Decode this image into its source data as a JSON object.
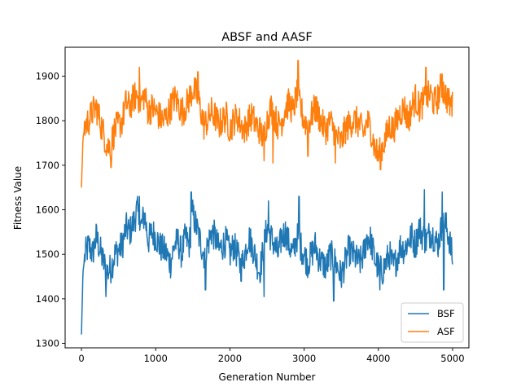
{
  "chart_data": {
    "type": "line",
    "title": "ABSF and AASF",
    "xlabel": "Generation Number",
    "ylabel": "Fitness Value",
    "xlim": [
      -220,
      5220
    ],
    "ylim": [
      1290,
      1965
    ],
    "xticks": [
      0,
      1000,
      2000,
      3000,
      4000,
      5000
    ],
    "yticks": [
      1300,
      1400,
      1500,
      1600,
      1700,
      1800,
      1900
    ],
    "grid": false,
    "legend_position": "lower right",
    "series": [
      {
        "name": "BSF",
        "color": "#1f77b4",
        "x": [
          0,
          20,
          50,
          100,
          150,
          200,
          250,
          300,
          350,
          400,
          450,
          500,
          550,
          600,
          650,
          700,
          750,
          800,
          850,
          900,
          950,
          1000,
          1050,
          1100,
          1150,
          1200,
          1250,
          1300,
          1350,
          1400,
          1450,
          1500,
          1550,
          1600,
          1650,
          1700,
          1750,
          1800,
          1850,
          1900,
          1950,
          2000,
          2050,
          2100,
          2150,
          2200,
          2250,
          2300,
          2350,
          2400,
          2450,
          2500,
          2550,
          2600,
          2650,
          2700,
          2750,
          2800,
          2850,
          2900,
          2950,
          3000,
          3050,
          3100,
          3150,
          3200,
          3250,
          3300,
          3350,
          3400,
          3450,
          3500,
          3550,
          3600,
          3650,
          3700,
          3750,
          3800,
          3850,
          3900,
          3950,
          4000,
          4050,
          4100,
          4150,
          4200,
          4250,
          4300,
          4350,
          4400,
          4450,
          4500,
          4550,
          4600,
          4650,
          4700,
          4750,
          4800,
          4850,
          4900,
          4950,
          5000
        ],
        "values": [
          1320,
          1460,
          1500,
          1520,
          1500,
          1540,
          1510,
          1480,
          1460,
          1470,
          1500,
          1510,
          1520,
          1560,
          1550,
          1570,
          1600,
          1560,
          1590,
          1530,
          1550,
          1540,
          1520,
          1510,
          1500,
          1480,
          1520,
          1530,
          1500,
          1540,
          1520,
          1590,
          1560,
          1530,
          1500,
          1520,
          1550,
          1540,
          1510,
          1520,
          1530,
          1500,
          1520,
          1500,
          1470,
          1500,
          1540,
          1520,
          1490,
          1460,
          1510,
          1560,
          1540,
          1520,
          1500,
          1540,
          1550,
          1520,
          1500,
          1540,
          1520,
          1500,
          1480,
          1500,
          1520,
          1490,
          1480,
          1470,
          1500,
          1490,
          1470,
          1450,
          1480,
          1510,
          1500,
          1490,
          1480,
          1500,
          1540,
          1530,
          1490,
          1470,
          1460,
          1480,
          1500,
          1470,
          1490,
          1520,
          1510,
          1530,
          1540,
          1520,
          1560,
          1540,
          1530,
          1550,
          1540,
          1520,
          1560,
          1570,
          1540,
          1490
        ],
        "peaks": {
          "x": [
            780,
            1480,
            2520,
            2930,
            4620,
            4860
          ],
          "values": [
            1630,
            1640,
            1620,
            1630,
            1645,
            1640
          ]
        },
        "troughs": {
          "x": [
            330,
            1670,
            2460,
            3400,
            4020,
            4880
          ],
          "values": [
            1405,
            1420,
            1405,
            1395,
            1420,
            1420
          ]
        }
      },
      {
        "name": "ASF",
        "color": "#ff7f0e",
        "x": [
          0,
          20,
          50,
          100,
          150,
          200,
          250,
          300,
          350,
          400,
          450,
          500,
          550,
          600,
          650,
          700,
          750,
          800,
          850,
          900,
          950,
          1000,
          1050,
          1100,
          1150,
          1200,
          1250,
          1300,
          1350,
          1400,
          1450,
          1500,
          1550,
          1600,
          1650,
          1700,
          1750,
          1800,
          1850,
          1900,
          1950,
          2000,
          2050,
          2100,
          2150,
          2200,
          2250,
          2300,
          2350,
          2400,
          2450,
          2500,
          2550,
          2600,
          2650,
          2700,
          2750,
          2800,
          2850,
          2900,
          2950,
          3000,
          3050,
          3100,
          3150,
          3200,
          3250,
          3300,
          3350,
          3400,
          3450,
          3500,
          3550,
          3600,
          3650,
          3700,
          3750,
          3800,
          3850,
          3900,
          3950,
          4000,
          4050,
          4100,
          4150,
          4200,
          4250,
          4300,
          4350,
          4400,
          4450,
          4500,
          4550,
          4600,
          4650,
          4700,
          4750,
          4800,
          4850,
          4900,
          4950,
          5000
        ],
        "values": [
          1650,
          1760,
          1790,
          1800,
          1820,
          1830,
          1800,
          1770,
          1740,
          1750,
          1780,
          1790,
          1800,
          1840,
          1830,
          1850,
          1860,
          1840,
          1860,
          1820,
          1830,
          1820,
          1810,
          1800,
          1810,
          1830,
          1850,
          1840,
          1820,
          1830,
          1850,
          1870,
          1860,
          1830,
          1790,
          1800,
          1820,
          1810,
          1790,
          1800,
          1810,
          1780,
          1800,
          1810,
          1790,
          1780,
          1800,
          1810,
          1790,
          1780,
          1760,
          1800,
          1830,
          1810,
          1790,
          1800,
          1830,
          1840,
          1820,
          1860,
          1830,
          1800,
          1790,
          1810,
          1830,
          1810,
          1790,
          1780,
          1800,
          1780,
          1760,
          1750,
          1780,
          1790,
          1800,
          1800,
          1790,
          1770,
          1800,
          1780,
          1740,
          1720,
          1740,
          1760,
          1790,
          1780,
          1800,
          1820,
          1830,
          1800,
          1830,
          1850,
          1830,
          1840,
          1850,
          1860,
          1840,
          1850,
          1880,
          1860,
          1840,
          1830
        ],
        "peaks": {
          "x": [
            780,
            1570,
            2920,
            4640,
            4860,
            5000
          ],
          "values": [
            1920,
            1910,
            1935,
            1920,
            1905,
            1865
          ]
        },
        "troughs": {
          "x": [
            400,
            2460,
            2580,
            3050,
            3420,
            4030
          ],
          "values": [
            1695,
            1710,
            1705,
            1720,
            1705,
            1690
          ]
        }
      }
    ]
  }
}
